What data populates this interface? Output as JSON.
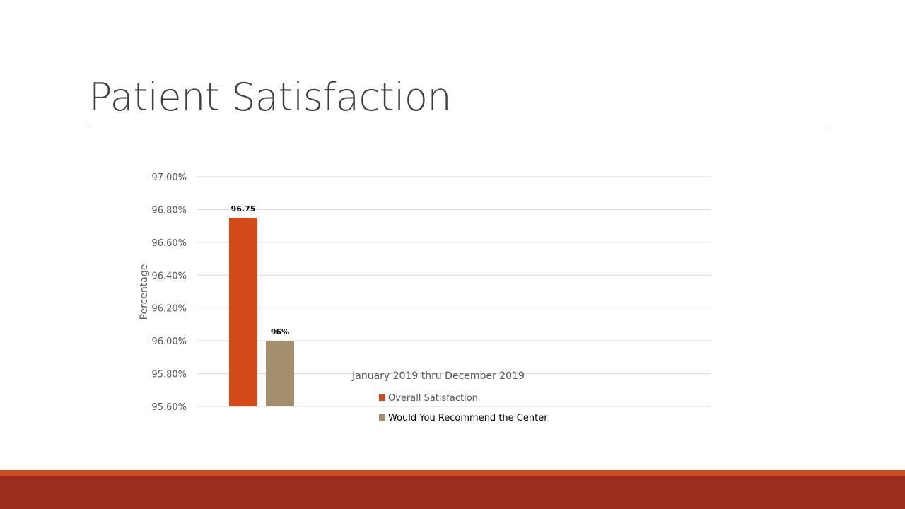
{
  "slide": {
    "title": "Patient Satisfaction"
  },
  "colors": {
    "series_1": "#d24a18",
    "series_2": "#a38f6b",
    "gridline": "#d9d9d9",
    "footer_accent": "#d04a1a",
    "footer_bar": "#9a2d1e"
  },
  "chart_data": {
    "type": "bar",
    "title": "January 2019 thru December 2019",
    "ylabel": "Percentage",
    "xlabel": "",
    "ylim": [
      95.6,
      97.0
    ],
    "yticks": [
      "95.60%",
      "95.80%",
      "96.00%",
      "96.20%",
      "96.40%",
      "96.60%",
      "96.80%",
      "97.00%"
    ],
    "grid": true,
    "legend_position": "bottom-center",
    "series": [
      {
        "name": "Overall Satisfaction",
        "values": [
          96.75
        ],
        "data_label": "96.75"
      },
      {
        "name": "Would You Recommend the Center",
        "values": [
          96.0
        ],
        "data_label": "96%"
      }
    ]
  }
}
